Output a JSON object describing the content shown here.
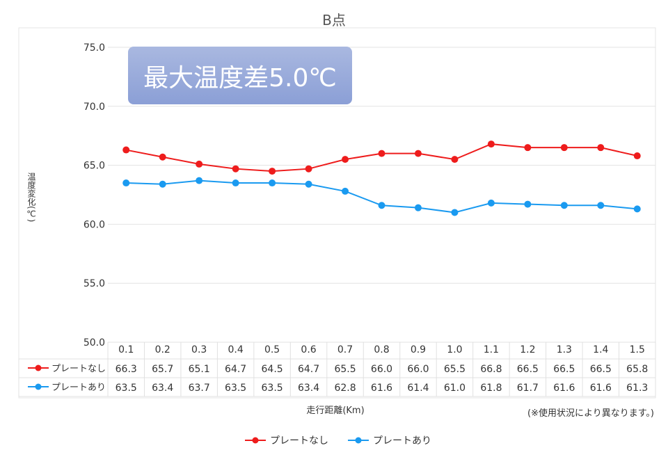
{
  "chart_data": {
    "type": "line",
    "title": "B点",
    "xlabel": "走行距離(Km)",
    "ylabel": "温度変化(℃)",
    "ylim": [
      50,
      75
    ],
    "yticks": [
      "50.0",
      "55.0",
      "60.0",
      "65.0",
      "70.0",
      "75.0"
    ],
    "categories": [
      "0.1",
      "0.2",
      "0.3",
      "0.4",
      "0.5",
      "0.6",
      "0.7",
      "0.8",
      "0.9",
      "1.0",
      "1.1",
      "1.2",
      "1.3",
      "1.4",
      "1.5"
    ],
    "series": [
      {
        "name": "プレートなし",
        "color": "#ee1c1c",
        "values": [
          66.3,
          65.7,
          65.1,
          64.7,
          64.5,
          64.7,
          65.5,
          66.0,
          66.0,
          65.5,
          66.8,
          66.5,
          66.5,
          66.5,
          65.8
        ]
      },
      {
        "name": "プレートあり",
        "color": "#1a9af0",
        "values": [
          63.5,
          63.4,
          63.7,
          63.5,
          63.5,
          63.4,
          62.8,
          61.6,
          61.4,
          61.0,
          61.8,
          61.7,
          61.6,
          61.6,
          61.3
        ]
      }
    ],
    "annotation": "最大温度差5.0℃",
    "note": "(※使用状況により異なります。)",
    "grid": true,
    "legend": "bottom",
    "data_table": true
  }
}
